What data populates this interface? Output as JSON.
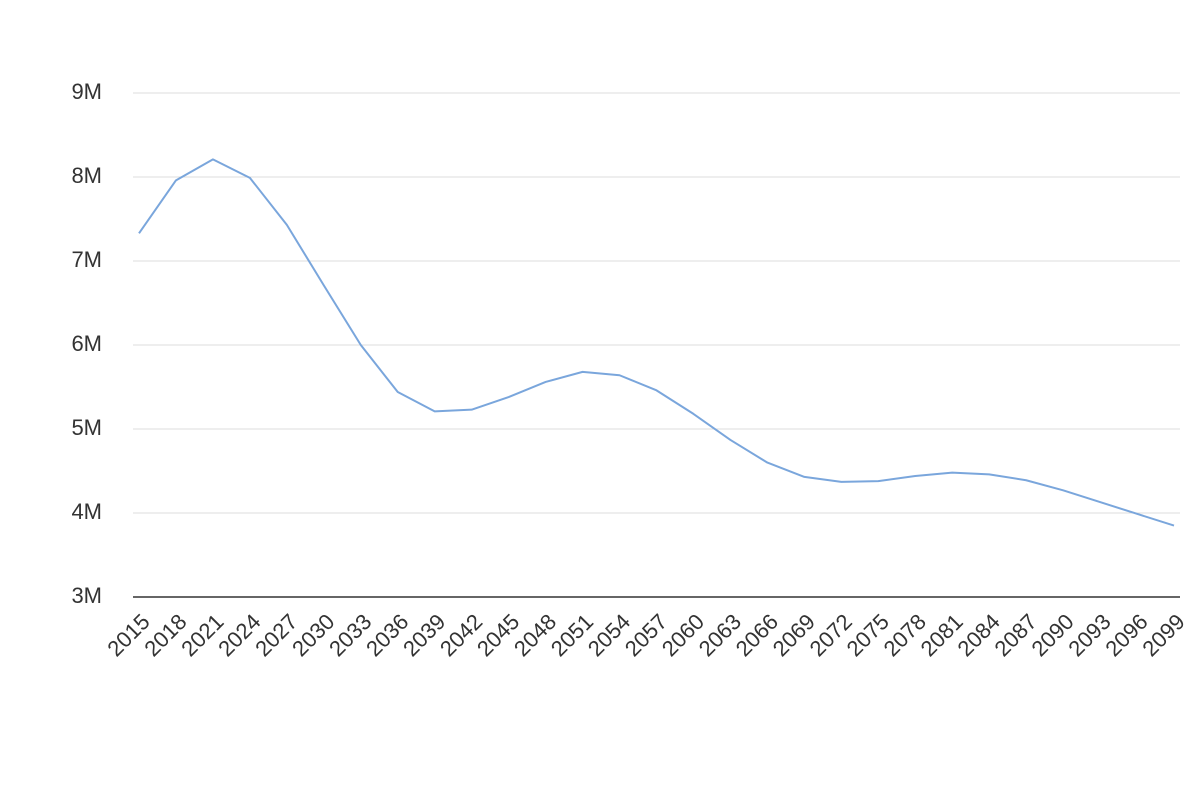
{
  "chart_data": {
    "type": "line",
    "x": [
      2015,
      2018,
      2021,
      2024,
      2027,
      2030,
      2033,
      2036,
      2039,
      2042,
      2045,
      2048,
      2051,
      2054,
      2057,
      2060,
      2063,
      2066,
      2069,
      2072,
      2075,
      2078,
      2081,
      2084,
      2087,
      2090,
      2093,
      2096,
      2099
    ],
    "series": [
      {
        "color": "#7aa6dc",
        "values": [
          7330000,
          7960000,
          8210000,
          7990000,
          7430000,
          6710000,
          6000000,
          5440000,
          5210000,
          5230000,
          5380000,
          5560000,
          5680000,
          5640000,
          5460000,
          5180000,
          4870000,
          4600000,
          4430000,
          4370000,
          4380000,
          4440000,
          4480000,
          4460000,
          4390000,
          4270000,
          4130000,
          3990000,
          3850000
        ]
      }
    ],
    "xlim": [
      2015,
      2099
    ],
    "xticks": [
      2015,
      2018,
      2021,
      2024,
      2027,
      2030,
      2033,
      2036,
      2039,
      2042,
      2045,
      2048,
      2051,
      2054,
      2057,
      2060,
      2063,
      2066,
      2069,
      2072,
      2075,
      2078,
      2081,
      2084,
      2087,
      2090,
      2093,
      2096,
      2099
    ],
    "ylim": [
      3000000,
      9000000
    ],
    "yticks": [
      {
        "value": 3000000,
        "label": "3M"
      },
      {
        "value": 4000000,
        "label": "4M"
      },
      {
        "value": 5000000,
        "label": "5M"
      },
      {
        "value": 6000000,
        "label": "6M"
      },
      {
        "value": 7000000,
        "label": "7M"
      },
      {
        "value": 8000000,
        "label": "8M"
      },
      {
        "value": 9000000,
        "label": "9M"
      }
    ],
    "grid": true
  }
}
